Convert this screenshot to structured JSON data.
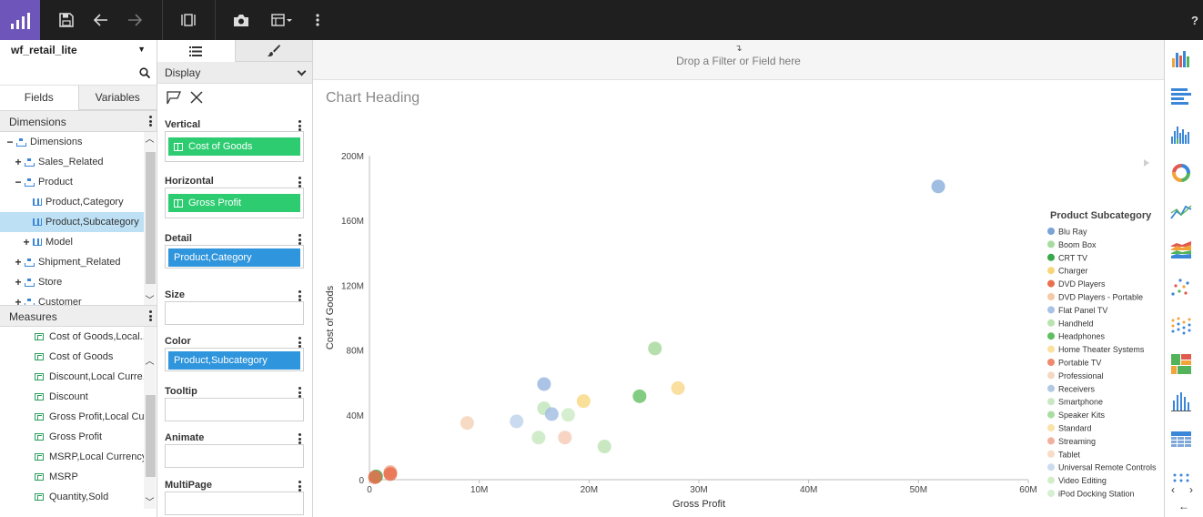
{
  "toolbar": {
    "items": [
      "logo-icon",
      "save-icon",
      "undo-icon",
      "redo-icon",
      "fit-icon",
      "snapshot-icon",
      "view-icon",
      "more-icon"
    ],
    "help": "?"
  },
  "left": {
    "datasource": "wf_retail_lite",
    "search_placeholder": "",
    "tabs": [
      "Fields",
      "Variables"
    ],
    "dimensions_title": "Dimensions",
    "dimension_tree": [
      {
        "label": "Dimensions",
        "pm": "−",
        "indent": 0,
        "icon": "hier"
      },
      {
        "label": "Sales_Related",
        "pm": "+",
        "indent": 1,
        "icon": "hier"
      },
      {
        "label": "Product",
        "pm": "−",
        "indent": 1,
        "icon": "hier"
      },
      {
        "label": "Product,Category",
        "pm": "",
        "indent": 2,
        "icon": "dim"
      },
      {
        "label": "Product,Subcategory",
        "pm": "",
        "indent": 2,
        "icon": "dim",
        "selected": true
      },
      {
        "label": "Model",
        "pm": "+",
        "indent": 2,
        "icon": "dim"
      },
      {
        "label": "Shipment_Related",
        "pm": "+",
        "indent": 1,
        "icon": "hier"
      },
      {
        "label": "Store",
        "pm": "+",
        "indent": 1,
        "icon": "hier"
      },
      {
        "label": "Customer",
        "pm": "+",
        "indent": 1,
        "icon": "hier"
      }
    ],
    "measures_title": "Measures",
    "measures": [
      "Cost of Goods,Local...",
      "Cost of Goods",
      "Discount,Local Curre...",
      "Discount",
      "Gross Profit,Local Cu...",
      "Gross Profit",
      "MSRP,Local Currency",
      "MSRP",
      "Quantity,Sold"
    ]
  },
  "middle": {
    "display_label": "Display",
    "shelves": [
      {
        "label": "Vertical",
        "pill": "Cost of Goods",
        "kind": "green"
      },
      {
        "label": "Horizontal",
        "pill": "Gross Profit",
        "kind": "green"
      },
      {
        "label": "Detail",
        "pill": "Product,Category",
        "kind": "blue"
      },
      {
        "label": "Size",
        "pill": "",
        "kind": ""
      },
      {
        "label": "Color",
        "pill": "Product,Subcategory",
        "kind": "blue"
      },
      {
        "label": "Tooltip",
        "pill": "",
        "kind": ""
      },
      {
        "label": "Animate",
        "pill": "",
        "kind": ""
      },
      {
        "label": "MultiPage",
        "pill": "",
        "kind": ""
      }
    ]
  },
  "main": {
    "dropzone_text": "Drop a Filter or Field here",
    "chart_heading": "Chart Heading"
  },
  "colors": {
    "accent_purple": "#6e55b9",
    "pill_green": "#2ecc71",
    "pill_blue": "#2f95dc",
    "selection": "#bde0f5"
  },
  "chart_data": {
    "type": "scatter",
    "title": "Chart Heading",
    "xlabel": "Gross Profit",
    "ylabel": "Cost of Goods",
    "xlim": [
      0,
      60000000
    ],
    "ylim": [
      0,
      200000000
    ],
    "xticks": [
      "0",
      "10M",
      "20M",
      "30M",
      "40M",
      "50M",
      "60M"
    ],
    "yticks": [
      "0",
      "40M",
      "80M",
      "120M",
      "160M",
      "200M"
    ],
    "legend_title": "Product Subcategory",
    "legend_position": "right",
    "series": [
      {
        "name": "Blu Ray",
        "color": "#7aa3d6"
      },
      {
        "name": "Boom Box",
        "color": "#a8dba0"
      },
      {
        "name": "CRT TV",
        "color": "#3aa84a"
      },
      {
        "name": "Charger",
        "color": "#f7d57a"
      },
      {
        "name": "DVD Players",
        "color": "#e8704e"
      },
      {
        "name": "DVD Players - Portable",
        "color": "#f4c9a8"
      },
      {
        "name": "Flat Panel TV",
        "color": "#a9c3e6"
      },
      {
        "name": "Handheld",
        "color": "#b9e4b0"
      },
      {
        "name": "Headphones",
        "color": "#5fbf60"
      },
      {
        "name": "Home Theater Systems",
        "color": "#fbe0a0"
      },
      {
        "name": "Portable TV",
        "color": "#ee8a6b"
      },
      {
        "name": "Professional",
        "color": "#f6d7c4"
      },
      {
        "name": "Receivers",
        "color": "#b3c9e3"
      },
      {
        "name": "Smartphone",
        "color": "#c9e8c1"
      },
      {
        "name": "Speaker Kits",
        "color": "#aadda0"
      },
      {
        "name": "Standard",
        "color": "#fbe2a8"
      },
      {
        "name": "Streaming",
        "color": "#f2b19e"
      },
      {
        "name": "Tablet",
        "color": "#f8dcc7"
      },
      {
        "name": "Universal Remote Controls",
        "color": "#cadcf0"
      },
      {
        "name": "Video Editing",
        "color": "#d3edca"
      },
      {
        "name": "iPod Docking Station",
        "color": "#d6efd0"
      }
    ],
    "points": [
      {
        "x": 51800000,
        "y": 181000000,
        "color": "#8fb1dd"
      },
      {
        "x": 26000000,
        "y": 81000000,
        "color": "#a8dba0"
      },
      {
        "x": 28100000,
        "y": 56500000,
        "color": "#f9d991"
      },
      {
        "x": 24600000,
        "y": 51500000,
        "color": "#6cc46b"
      },
      {
        "x": 15900000,
        "y": 59000000,
        "color": "#9cb9e0"
      },
      {
        "x": 19500000,
        "y": 48500000,
        "color": "#f9d986"
      },
      {
        "x": 15900000,
        "y": 44000000,
        "color": "#c4e6bc"
      },
      {
        "x": 16600000,
        "y": 40500000,
        "color": "#a5c1e4"
      },
      {
        "x": 18100000,
        "y": 40000000,
        "color": "#cfebc8"
      },
      {
        "x": 13400000,
        "y": 36000000,
        "color": "#c2d5ec"
      },
      {
        "x": 8900000,
        "y": 35000000,
        "color": "#f6d3b8"
      },
      {
        "x": 15400000,
        "y": 26000000,
        "color": "#c8e9c1"
      },
      {
        "x": 17800000,
        "y": 26000000,
        "color": "#f6cdb8"
      },
      {
        "x": 21400000,
        "y": 20500000,
        "color": "#bfe4b7"
      },
      {
        "x": 1900000,
        "y": 4700000,
        "color": "#f2a88f"
      },
      {
        "x": 1900000,
        "y": 3500000,
        "color": "#e8704e"
      },
      {
        "x": 600000,
        "y": 2000000,
        "color": "#3aa84a"
      },
      {
        "x": 500000,
        "y": 1500000,
        "color": "#e8704e"
      }
    ]
  }
}
